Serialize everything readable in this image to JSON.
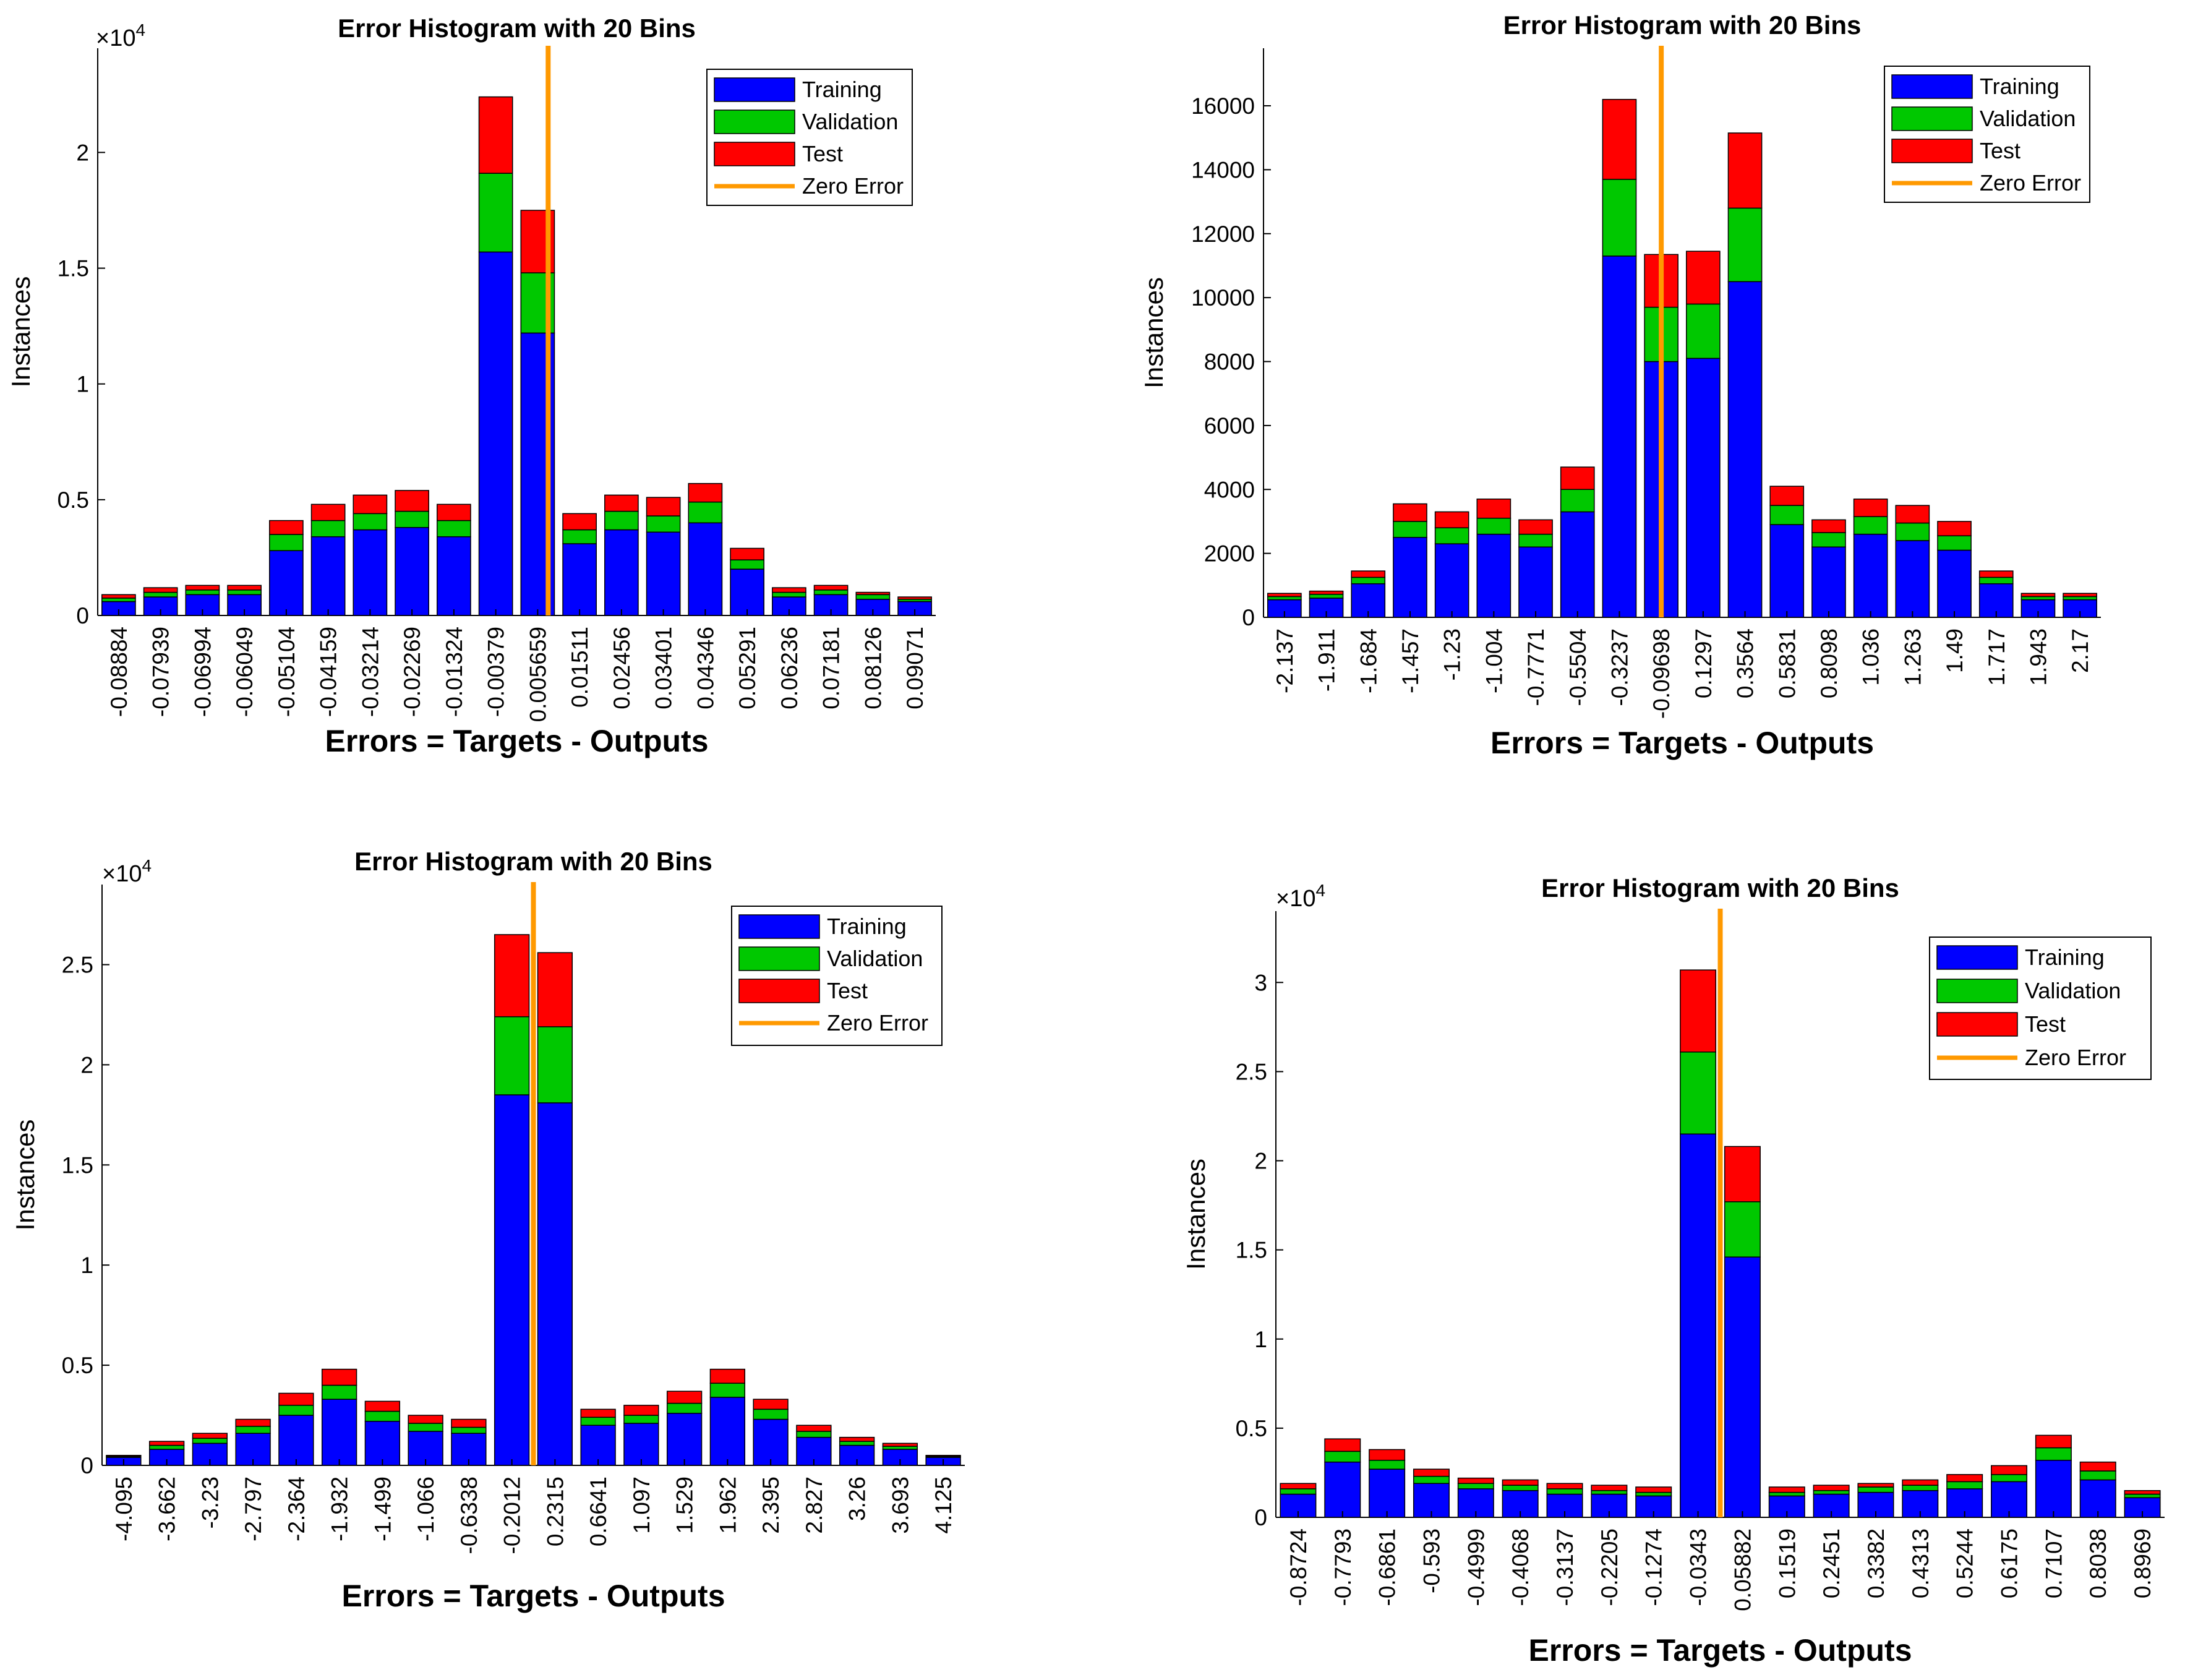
{
  "colors": {
    "training": "#0000ff",
    "validation": "#00c800",
    "test": "#ff0000",
    "zero": "#ff9900",
    "axis": "#000000"
  },
  "chart_data": [
    {
      "type": "bar",
      "stacked": true,
      "title": "Error Histogram with 20 Bins",
      "xlabel": "Errors = Targets - Outputs",
      "ylabel": "Instances",
      "exponent_prefix": "×10",
      "exponent_power": "4",
      "ylim": [
        0,
        2.45
      ],
      "yticks": [
        "0",
        "0.5",
        "1",
        "1.5",
        "2"
      ],
      "zero_error_position": 10.75,
      "categories": [
        "-0.08884",
        "-0.07939",
        "-0.06994",
        "-0.06049",
        "-0.05104",
        "-0.04159",
        "-0.03214",
        "-0.02269",
        "-0.01324",
        "-0.00379",
        "0.005659",
        "0.01511",
        "0.02456",
        "0.03401",
        "0.04346",
        "0.05291",
        "0.06236",
        "0.07181",
        "0.08126",
        "0.09071"
      ],
      "series": [
        {
          "name": "Training",
          "values": [
            0.06,
            0.08,
            0.09,
            0.09,
            0.28,
            0.34,
            0.37,
            0.38,
            0.34,
            1.57,
            1.22,
            0.31,
            0.37,
            0.36,
            0.4,
            0.2,
            0.08,
            0.09,
            0.07,
            0.06
          ]
        },
        {
          "name": "Validation",
          "values": [
            0.015,
            0.02,
            0.02,
            0.02,
            0.07,
            0.07,
            0.07,
            0.07,
            0.07,
            0.34,
            0.26,
            0.06,
            0.08,
            0.07,
            0.09,
            0.04,
            0.02,
            0.02,
            0.02,
            0.01
          ]
        },
        {
          "name": "Test",
          "values": [
            0.015,
            0.02,
            0.02,
            0.02,
            0.06,
            0.07,
            0.08,
            0.09,
            0.07,
            0.33,
            0.27,
            0.07,
            0.07,
            0.08,
            0.08,
            0.05,
            0.02,
            0.02,
            0.01,
            0.01
          ]
        }
      ],
      "legend": [
        "Training",
        "Validation",
        "Test",
        "Zero Error"
      ]
    },
    {
      "type": "bar",
      "stacked": true,
      "title": "Error Histogram with 20 Bins",
      "xlabel": "Errors = Targets - Outputs",
      "ylabel": "Instances",
      "exponent_prefix": "",
      "exponent_power": "",
      "ylim": [
        0,
        17800
      ],
      "yticks": [
        "0",
        "2000",
        "4000",
        "6000",
        "8000",
        "10000",
        "12000",
        "14000",
        "16000"
      ],
      "zero_error_position": 9.5,
      "categories": [
        "-2.137",
        "-1.911",
        "-1.684",
        "-1.457",
        "-1.23",
        "-1.004",
        "-0.7771",
        "-0.5504",
        "-0.3237",
        "-0.09698",
        "0.1297",
        "0.3564",
        "0.5831",
        "0.8098",
        "1.036",
        "1.263",
        "1.49",
        "1.717",
        "1.943",
        "2.17"
      ],
      "series": [
        {
          "name": "Training",
          "values": [
            550,
            600,
            1050,
            2500,
            2300,
            2600,
            2200,
            3300,
            11300,
            8000,
            8100,
            10500,
            2900,
            2200,
            2600,
            2400,
            2100,
            1050,
            550,
            550
          ]
        },
        {
          "name": "Validation",
          "values": [
            100,
            120,
            200,
            500,
            500,
            500,
            400,
            700,
            2400,
            1700,
            1700,
            2300,
            600,
            450,
            550,
            550,
            450,
            200,
            100,
            100
          ]
        },
        {
          "name": "Test",
          "values": [
            100,
            100,
            200,
            550,
            500,
            600,
            450,
            700,
            2500,
            1650,
            1650,
            2350,
            600,
            400,
            550,
            550,
            450,
            200,
            100,
            100
          ]
        }
      ],
      "legend": [
        "Training",
        "Validation",
        "Test",
        "Zero Error"
      ]
    },
    {
      "type": "bar",
      "stacked": true,
      "title": "Error Histogram with 20 Bins",
      "xlabel": "Errors = Targets - Outputs",
      "ylabel": "Instances",
      "exponent_prefix": "×10",
      "exponent_power": "4",
      "ylim": [
        0,
        2.9
      ],
      "yticks": [
        "0",
        "0.5",
        "1",
        "1.5",
        "2",
        "2.5"
      ],
      "zero_error_position": 10.0,
      "categories": [
        "-4.095",
        "-3.662",
        "-3.23",
        "-2.797",
        "-2.364",
        "-1.932",
        "-1.499",
        "-1.066",
        "-0.6338",
        "-0.2012",
        "0.2315",
        "0.6641",
        "1.097",
        "1.529",
        "1.962",
        "2.395",
        "2.827",
        "3.26",
        "3.693",
        "4.125"
      ],
      "series": [
        {
          "name": "Training",
          "values": [
            0.04,
            0.08,
            0.11,
            0.16,
            0.25,
            0.33,
            0.22,
            0.17,
            0.16,
            1.85,
            1.81,
            0.2,
            0.21,
            0.26,
            0.34,
            0.23,
            0.14,
            0.1,
            0.08,
            0.04
          ]
        },
        {
          "name": "Validation",
          "values": [
            0.005,
            0.02,
            0.025,
            0.035,
            0.05,
            0.07,
            0.05,
            0.04,
            0.03,
            0.39,
            0.38,
            0.04,
            0.04,
            0.05,
            0.07,
            0.05,
            0.03,
            0.02,
            0.015,
            0.005
          ]
        },
        {
          "name": "Test",
          "values": [
            0.005,
            0.02,
            0.025,
            0.035,
            0.06,
            0.08,
            0.05,
            0.04,
            0.04,
            0.41,
            0.37,
            0.04,
            0.05,
            0.06,
            0.07,
            0.05,
            0.03,
            0.02,
            0.015,
            0.005
          ]
        }
      ],
      "legend": [
        "Training",
        "Validation",
        "Test",
        "Zero Error"
      ]
    },
    {
      "type": "bar",
      "stacked": true,
      "title": "Error Histogram with 20 Bins",
      "xlabel": "Errors = Targets - Outputs",
      "ylabel": "Instances",
      "exponent_prefix": "×10",
      "exponent_power": "4",
      "ylim": [
        0,
        3.4
      ],
      "yticks": [
        "0",
        "0.5",
        "1",
        "1.5",
        "2",
        "2.5",
        "3"
      ],
      "zero_error_position": 10.0,
      "categories": [
        "-0.8724",
        "-0.7793",
        "-0.6861",
        "-0.593",
        "-0.4999",
        "-0.4068",
        "-0.3137",
        "-0.2205",
        "-0.1274",
        "-0.0343",
        "0.05882",
        "0.1519",
        "0.2451",
        "0.3382",
        "0.4313",
        "0.5244",
        "0.6175",
        "0.7107",
        "0.8038",
        "0.8969"
      ],
      "series": [
        {
          "name": "Training",
          "values": [
            0.13,
            0.31,
            0.27,
            0.19,
            0.16,
            0.15,
            0.13,
            0.13,
            0.12,
            2.15,
            1.46,
            0.12,
            0.13,
            0.14,
            0.15,
            0.16,
            0.2,
            0.32,
            0.21,
            0.11
          ]
        },
        {
          "name": "Validation",
          "values": [
            0.03,
            0.06,
            0.05,
            0.04,
            0.03,
            0.03,
            0.03,
            0.02,
            0.02,
            0.46,
            0.31,
            0.02,
            0.02,
            0.03,
            0.03,
            0.04,
            0.04,
            0.07,
            0.05,
            0.02
          ]
        },
        {
          "name": "Test",
          "values": [
            0.03,
            0.07,
            0.06,
            0.04,
            0.03,
            0.03,
            0.03,
            0.03,
            0.03,
            0.46,
            0.31,
            0.03,
            0.03,
            0.02,
            0.03,
            0.04,
            0.05,
            0.07,
            0.05,
            0.02
          ]
        }
      ],
      "legend": [
        "Training",
        "Validation",
        "Test",
        "Zero Error"
      ]
    }
  ]
}
